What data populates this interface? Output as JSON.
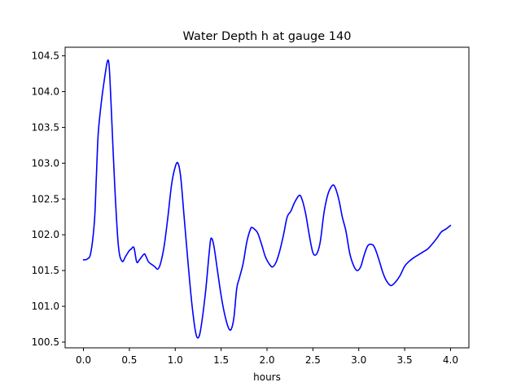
{
  "chart_data": {
    "type": "line",
    "title": "Water Depth h at gauge 140",
    "xlabel": "hours",
    "ylabel": "",
    "xlim": [
      -0.2,
      4.2
    ],
    "ylim": [
      100.42,
      104.62
    ],
    "xticks": [
      0.0,
      0.5,
      1.0,
      1.5,
      2.0,
      2.5,
      3.0,
      3.5,
      4.0
    ],
    "xtick_labels": [
      "0.0",
      "0.5",
      "1.0",
      "1.5",
      "2.0",
      "2.5",
      "3.0",
      "3.5",
      "4.0"
    ],
    "yticks": [
      100.5,
      101.0,
      101.5,
      102.0,
      102.5,
      103.0,
      103.5,
      104.0,
      104.5
    ],
    "ytick_labels": [
      "100.5",
      "101.0",
      "101.5",
      "102.0",
      "102.5",
      "103.0",
      "103.5",
      "104.0",
      "104.5"
    ],
    "grid": false,
    "line_color": "#0000ff",
    "series": [
      {
        "x": [
          0.0,
          0.04,
          0.08,
          0.12,
          0.14,
          0.16,
          0.19,
          0.22,
          0.26,
          0.28,
          0.3,
          0.34,
          0.38,
          0.42,
          0.46,
          0.5,
          0.52,
          0.55,
          0.58,
          0.61,
          0.66,
          0.68,
          0.71,
          0.75,
          0.78,
          0.81,
          0.84,
          0.88,
          0.92,
          0.96,
          1.0,
          1.03,
          1.06,
          1.1,
          1.14,
          1.18,
          1.22,
          1.25,
          1.28,
          1.33,
          1.37,
          1.39,
          1.42,
          1.46,
          1.5,
          1.54,
          1.58,
          1.61,
          1.64,
          1.67,
          1.7,
          1.74,
          1.78,
          1.82,
          1.84,
          1.87,
          1.9,
          1.94,
          1.98,
          2.02,
          2.06,
          2.1,
          2.14,
          2.18,
          2.22,
          2.26,
          2.3,
          2.35,
          2.38,
          2.42,
          2.46,
          2.5,
          2.54,
          2.58,
          2.62,
          2.66,
          2.7,
          2.73,
          2.76,
          2.79,
          2.82,
          2.86,
          2.9,
          2.94,
          2.98,
          3.02,
          3.06,
          3.1,
          3.15,
          3.18,
          3.22,
          3.26,
          3.3,
          3.35,
          3.4,
          3.45,
          3.5,
          3.55,
          3.6,
          3.65,
          3.7,
          3.75,
          3.8,
          3.85,
          3.9,
          3.95,
          4.0
        ],
        "y": [
          101.65,
          101.66,
          101.75,
          102.2,
          102.8,
          103.4,
          103.8,
          104.1,
          104.42,
          104.35,
          103.85,
          102.7,
          101.85,
          101.63,
          101.7,
          101.78,
          101.8,
          101.82,
          101.62,
          101.65,
          101.73,
          101.7,
          101.62,
          101.58,
          101.55,
          101.52,
          101.6,
          101.85,
          102.25,
          102.7,
          102.95,
          103.0,
          102.8,
          102.2,
          101.6,
          101.05,
          100.65,
          100.56,
          100.7,
          101.2,
          101.75,
          101.95,
          101.85,
          101.5,
          101.15,
          100.88,
          100.7,
          100.68,
          100.85,
          101.25,
          101.4,
          101.6,
          101.9,
          102.08,
          102.1,
          102.07,
          102.02,
          101.87,
          101.7,
          101.6,
          101.55,
          101.62,
          101.78,
          102.0,
          102.25,
          102.33,
          102.45,
          102.55,
          102.5,
          102.3,
          102.0,
          101.75,
          101.73,
          101.9,
          102.3,
          102.55,
          102.67,
          102.69,
          102.6,
          102.45,
          102.25,
          102.05,
          101.75,
          101.58,
          101.5,
          101.55,
          101.72,
          101.85,
          101.86,
          101.8,
          101.65,
          101.48,
          101.36,
          101.29,
          101.34,
          101.43,
          101.56,
          101.63,
          101.68,
          101.72,
          101.76,
          101.8,
          101.87,
          101.95,
          102.04,
          102.08,
          102.13
        ]
      }
    ]
  }
}
